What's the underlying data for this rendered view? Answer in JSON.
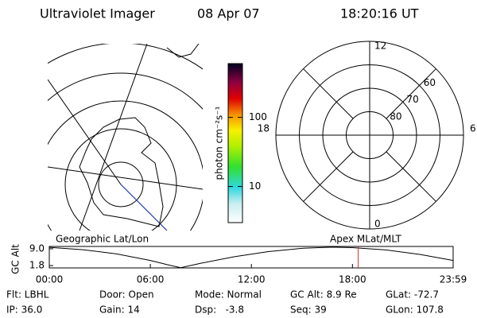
{
  "header": {
    "title": "Ultraviolet Imager",
    "date": "08 Apr 07",
    "time": "18:20:16 UT"
  },
  "geo_panel": {
    "label": "Geographic Lat/Lon"
  },
  "colorbar": {
    "label": "photon cm⁻²s⁻¹",
    "scale": "log",
    "lim": [
      3,
      600
    ],
    "ticks": [
      10,
      100
    ]
  },
  "polar_panel": {
    "label": "Apex MLat/MLT",
    "lat_min": 50,
    "lat_circles": [
      80,
      70,
      60
    ],
    "mlt_labels": [
      12,
      6,
      0,
      18
    ]
  },
  "chart_data": {
    "type": "line",
    "ylabel": "GC Alt",
    "x": [
      0,
      2,
      4,
      6,
      7,
      7.8,
      9,
      11,
      13,
      15,
      16.8,
      18,
      20,
      22,
      23.98
    ],
    "values": [
      9.6,
      8.6,
      6.8,
      4.0,
      2.2,
      0.9,
      2.8,
      5.6,
      7.8,
      9.2,
      9.7,
      9.5,
      8.5,
      6.6,
      4.0
    ],
    "color": "#000000",
    "xlim": [
      0,
      23.98
    ],
    "xticks": [
      {
        "value": 0,
        "label": "00:00"
      },
      {
        "value": 6,
        "label": "06:00"
      },
      {
        "value": 12,
        "label": "12:00"
      },
      {
        "value": 18,
        "label": "18:00"
      },
      {
        "value": 23.98,
        "label": "23:59"
      }
    ],
    "ylim": [
      0.8,
      10.0
    ],
    "yticks": [
      {
        "value": 9.0,
        "label": "9.0"
      },
      {
        "value": 1.8,
        "label": "1.8"
      }
    ],
    "marker_x": 18.34,
    "marker_color": "#e03030"
  },
  "info": {
    "rows": [
      [
        "Flt: LBHL",
        "Door: Open",
        "Mode: Normal",
        "GC Alt: 8.9 Re",
        "GLat: -72.7"
      ],
      [
        "IP: 36.0",
        "Gain: 14",
        "Dsp:   -3.8",
        "Seq: 39",
        "GLon: 107.8"
      ]
    ]
  }
}
